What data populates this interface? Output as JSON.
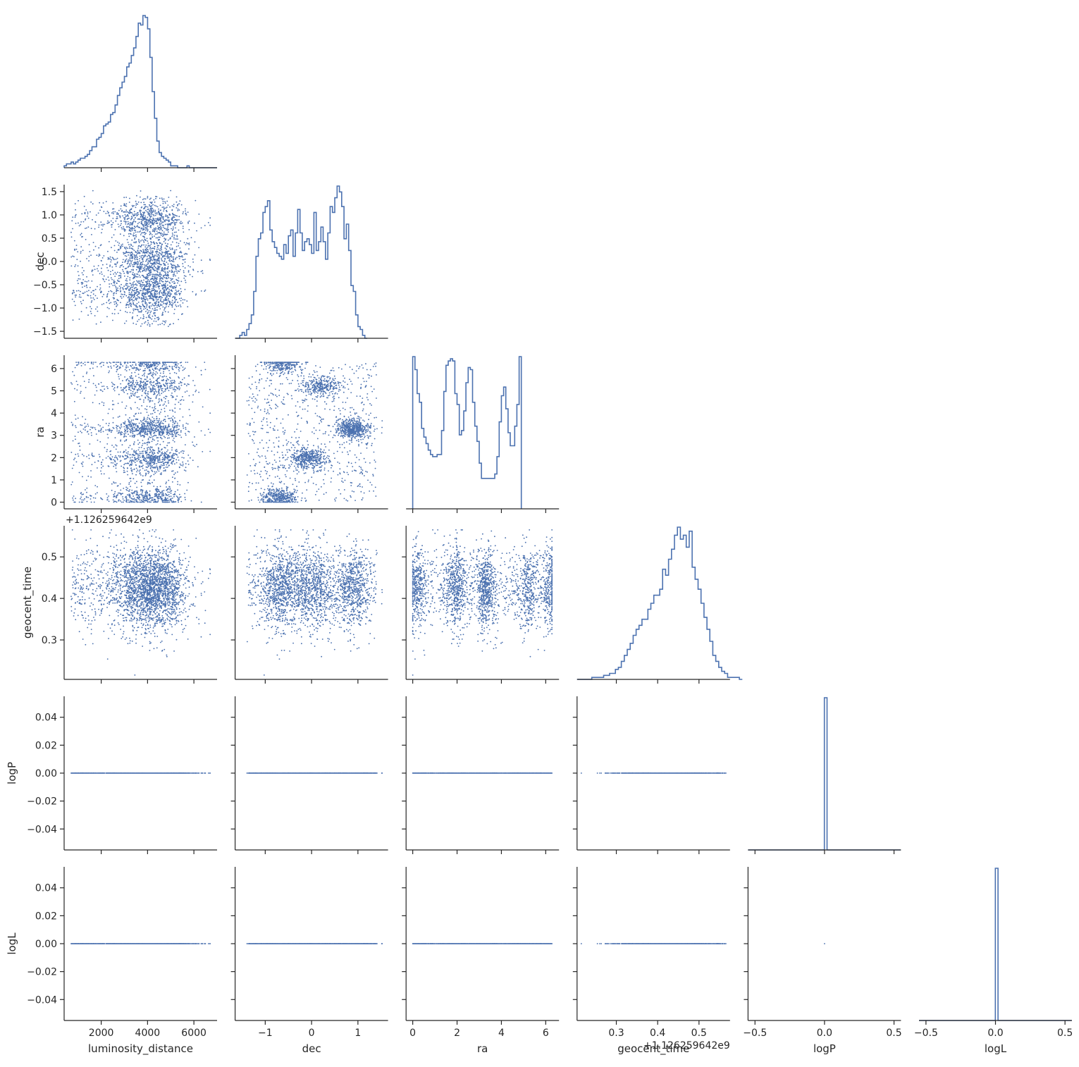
{
  "chart_data": {
    "type": "scatter",
    "layout": "corner-pairplot",
    "colors": {
      "marks": "#4c72b0",
      "axes": "#262626"
    },
    "variables": [
      {
        "name": "luminosity_distance",
        "xlim": [
          400,
          7000
        ],
        "ticks": [
          2000,
          4000,
          6000
        ],
        "tick_labels": [
          "2000",
          "4000",
          "6000"
        ]
      },
      {
        "name": "dec",
        "xlim": [
          -1.65,
          1.65
        ],
        "ticks": [
          -1.5,
          -1.0,
          -0.5,
          0.0,
          0.5,
          1.0,
          1.5
        ],
        "tick_labels": [
          "−1.5",
          "−1.0",
          "−0.5",
          "0.0",
          "0.5",
          "1.0",
          "1.5"
        ],
        "xticks": [
          -1,
          0,
          1
        ],
        "xtick_labels": [
          "−1",
          "0",
          "1"
        ]
      },
      {
        "name": "ra",
        "xlim": [
          -0.3,
          6.6
        ],
        "ticks": [
          0,
          1,
          2,
          3,
          4,
          5,
          6
        ],
        "tick_labels": [
          "0",
          "1",
          "2",
          "3",
          "4",
          "5",
          "6"
        ],
        "xticks": [
          0,
          2,
          4,
          6
        ],
        "xtick_labels": [
          "0",
          "2",
          "4",
          "6"
        ]
      },
      {
        "name": "geocent_time",
        "xlim": [
          0.205,
          0.575
        ],
        "ticks": [
          0.3,
          0.4,
          0.5
        ],
        "tick_labels": [
          "0.3",
          "0.4",
          "0.5"
        ],
        "offset": "+1.126259642e9"
      },
      {
        "name": "logP",
        "xlim": [
          -0.55,
          0.55
        ],
        "ylim": [
          -0.055,
          0.055
        ],
        "ticks": [
          -0.04,
          -0.02,
          0.0,
          0.02,
          0.04
        ],
        "tick_labels": [
          "−0.04",
          "−0.02",
          "0.00",
          "0.02",
          "0.04"
        ],
        "xticks": [
          -0.5,
          0.0,
          0.5
        ],
        "xtick_labels": [
          "−0.5",
          "0.0",
          "0.5"
        ]
      },
      {
        "name": "logL",
        "xlim": [
          -0.55,
          0.55
        ],
        "ylim": [
          -0.055,
          0.055
        ],
        "ticks": [
          -0.04,
          -0.02,
          0.0,
          0.02,
          0.04
        ],
        "tick_labels": [
          "−0.04",
          "−0.02",
          "0.00",
          "0.02",
          "0.04"
        ],
        "xticks": [
          -0.5,
          0.0,
          0.5
        ],
        "xtick_labels": [
          "−0.5",
          "0.0",
          "0.5"
        ]
      }
    ],
    "histograms": {
      "luminosity_distance": {
        "bin_start": 400,
        "bin_width": 100,
        "counts": [
          1,
          2,
          2,
          3,
          2,
          3,
          4,
          5,
          5,
          6,
          7,
          9,
          11,
          11,
          15,
          16,
          18,
          22,
          23,
          24,
          28,
          29,
          33,
          38,
          42,
          45,
          48,
          53,
          55,
          59,
          63,
          69,
          76,
          75,
          80,
          79,
          73,
          58,
          40,
          26,
          14,
          8,
          6,
          5,
          4,
          3,
          1,
          1,
          1,
          0,
          0,
          0,
          0,
          1,
          0,
          0,
          0,
          0,
          0,
          0,
          0,
          0,
          0,
          0,
          0,
          0
        ]
      },
      "dec": {
        "bin_start": -1.65,
        "bin_width": 0.05,
        "counts": [
          0,
          0,
          1,
          2,
          1,
          3,
          5,
          8,
          16,
          28,
          34,
          36,
          43,
          45,
          47,
          37,
          33,
          31,
          29,
          28,
          27,
          32,
          29,
          35,
          37,
          28,
          36,
          44,
          36,
          30,
          33,
          34,
          32,
          29,
          43,
          30,
          33,
          38,
          33,
          27,
          36,
          45,
          43,
          48,
          52,
          50,
          45,
          34,
          39,
          30,
          18,
          16,
          8,
          4,
          3,
          1,
          0
        ]
      },
      "ra": {
        "bin_start": 0,
        "bin_width": 0.1,
        "counts": [
          70,
          64,
          53,
          49,
          37,
          33,
          30,
          27,
          25,
          24,
          24,
          25,
          25,
          36,
          54,
          66,
          68,
          69,
          68,
          53,
          48,
          34,
          36,
          45,
          58,
          65,
          64,
          49,
          38,
          31,
          21,
          14,
          14,
          14,
          14,
          14,
          14,
          16,
          24,
          40,
          52,
          56,
          46,
          35,
          29,
          29,
          38,
          48,
          70
        ]
      },
      "geocent_time": {
        "bin_start": 0.205,
        "bin_width": 0.00714,
        "counts": [
          0,
          0,
          0,
          0,
          0,
          1,
          1,
          1,
          1,
          2,
          2,
          3,
          3,
          5,
          6,
          9,
          12,
          15,
          18,
          22,
          25,
          27,
          30,
          30,
          35,
          38,
          42,
          42,
          45,
          55,
          52,
          60,
          65,
          72,
          76,
          70,
          72,
          66,
          74,
          56,
          50,
          45,
          38,
          31,
          25,
          19,
          12,
          9,
          6,
          4,
          3,
          1,
          1,
          1,
          1,
          0
        ]
      },
      "logP": {
        "bin_start": -0.55,
        "bin_width": 0.0196,
        "counts": [
          0,
          0,
          0,
          0,
          0,
          0,
          0,
          0,
          0,
          0,
          0,
          0,
          0,
          0,
          0,
          0,
          0,
          0,
          0,
          0,
          0,
          0,
          0,
          0,
          0,
          0,
          0,
          0,
          5400,
          0,
          0,
          0,
          0,
          0,
          0,
          0,
          0,
          0,
          0,
          0,
          0,
          0,
          0,
          0,
          0,
          0,
          0,
          0,
          0,
          0,
          0,
          0,
          0,
          0,
          0,
          0
        ]
      },
      "logL": {
        "bin_start": -0.55,
        "bin_width": 0.0196,
        "counts": [
          0,
          0,
          0,
          0,
          0,
          0,
          0,
          0,
          0,
          0,
          0,
          0,
          0,
          0,
          0,
          0,
          0,
          0,
          0,
          0,
          0,
          0,
          0,
          0,
          0,
          0,
          0,
          0,
          5400,
          0,
          0,
          0,
          0,
          0,
          0,
          0,
          0,
          0,
          0,
          0,
          0,
          0,
          0,
          0,
          0,
          0,
          0,
          0,
          0,
          0,
          0,
          0,
          0,
          0,
          0,
          0
        ]
      }
    },
    "scatter_clusters": {
      "luminosity_distance": {
        "center": 4200,
        "spread": 900,
        "range": [
          700,
          6700
        ]
      },
      "dec_modes": [
        -0.9,
        -0.35,
        0.2,
        0.75
      ],
      "ra_dec_modes": [
        {
          "dec": -0.6,
          "ra": 6.2,
          "weight": 0.12
        },
        {
          "dec": 0.2,
          "ra": 5.2,
          "weight": 0.12
        },
        {
          "dec": 0.9,
          "ra": 3.3,
          "weight": 0.2
        },
        {
          "dec": -0.1,
          "ra": 2.0,
          "weight": 0.16
        },
        {
          "dec": -0.7,
          "ra": 0.2,
          "weight": 0.14
        }
      ],
      "geocent_time": {
        "center": 0.425,
        "spread": 0.05
      }
    }
  }
}
